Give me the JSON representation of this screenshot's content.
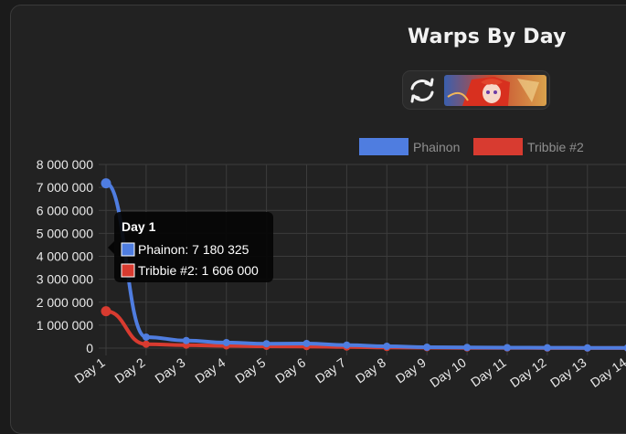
{
  "chart_data": {
    "type": "line",
    "title": "Warps By Day",
    "categories": [
      "Day 1",
      "Day 2",
      "Day 3",
      "Day 4",
      "Day 5",
      "Day 6",
      "Day 7",
      "Day 8",
      "Day 9",
      "Day 10",
      "Day 11",
      "Day 12",
      "Day 13",
      "Day 14"
    ],
    "series": [
      {
        "name": "Phainon",
        "color": "#4f7de0",
        "values": [
          7180325,
          480000,
          330000,
          240000,
          190000,
          200000,
          130000,
          80000,
          40000,
          30000,
          20000,
          15000,
          10000,
          10000
        ]
      },
      {
        "name": "Tribbie #2",
        "color": "#d83b30",
        "values": [
          1606000,
          170000,
          130000,
          100000,
          80000,
          70000,
          50000,
          30000,
          20000,
          10000,
          10000,
          5000,
          5000,
          5000
        ]
      }
    ],
    "ylim": [
      0,
      8000000
    ],
    "yticks": [
      "8 000 000",
      "7 000 000",
      "6 000 000",
      "5 000 000",
      "4 000 000",
      "3 000 000",
      "2 000 000",
      "1 000 000",
      "0"
    ],
    "grid": true,
    "legend_position": "top-right",
    "tooltip": {
      "title": "Day 1",
      "lines": [
        "Phainon: 7 180 325",
        "Tribbie #2: 1 606 000"
      ]
    }
  },
  "icons": {
    "refresh": "refresh-icon",
    "portrait": "character-portrait"
  }
}
